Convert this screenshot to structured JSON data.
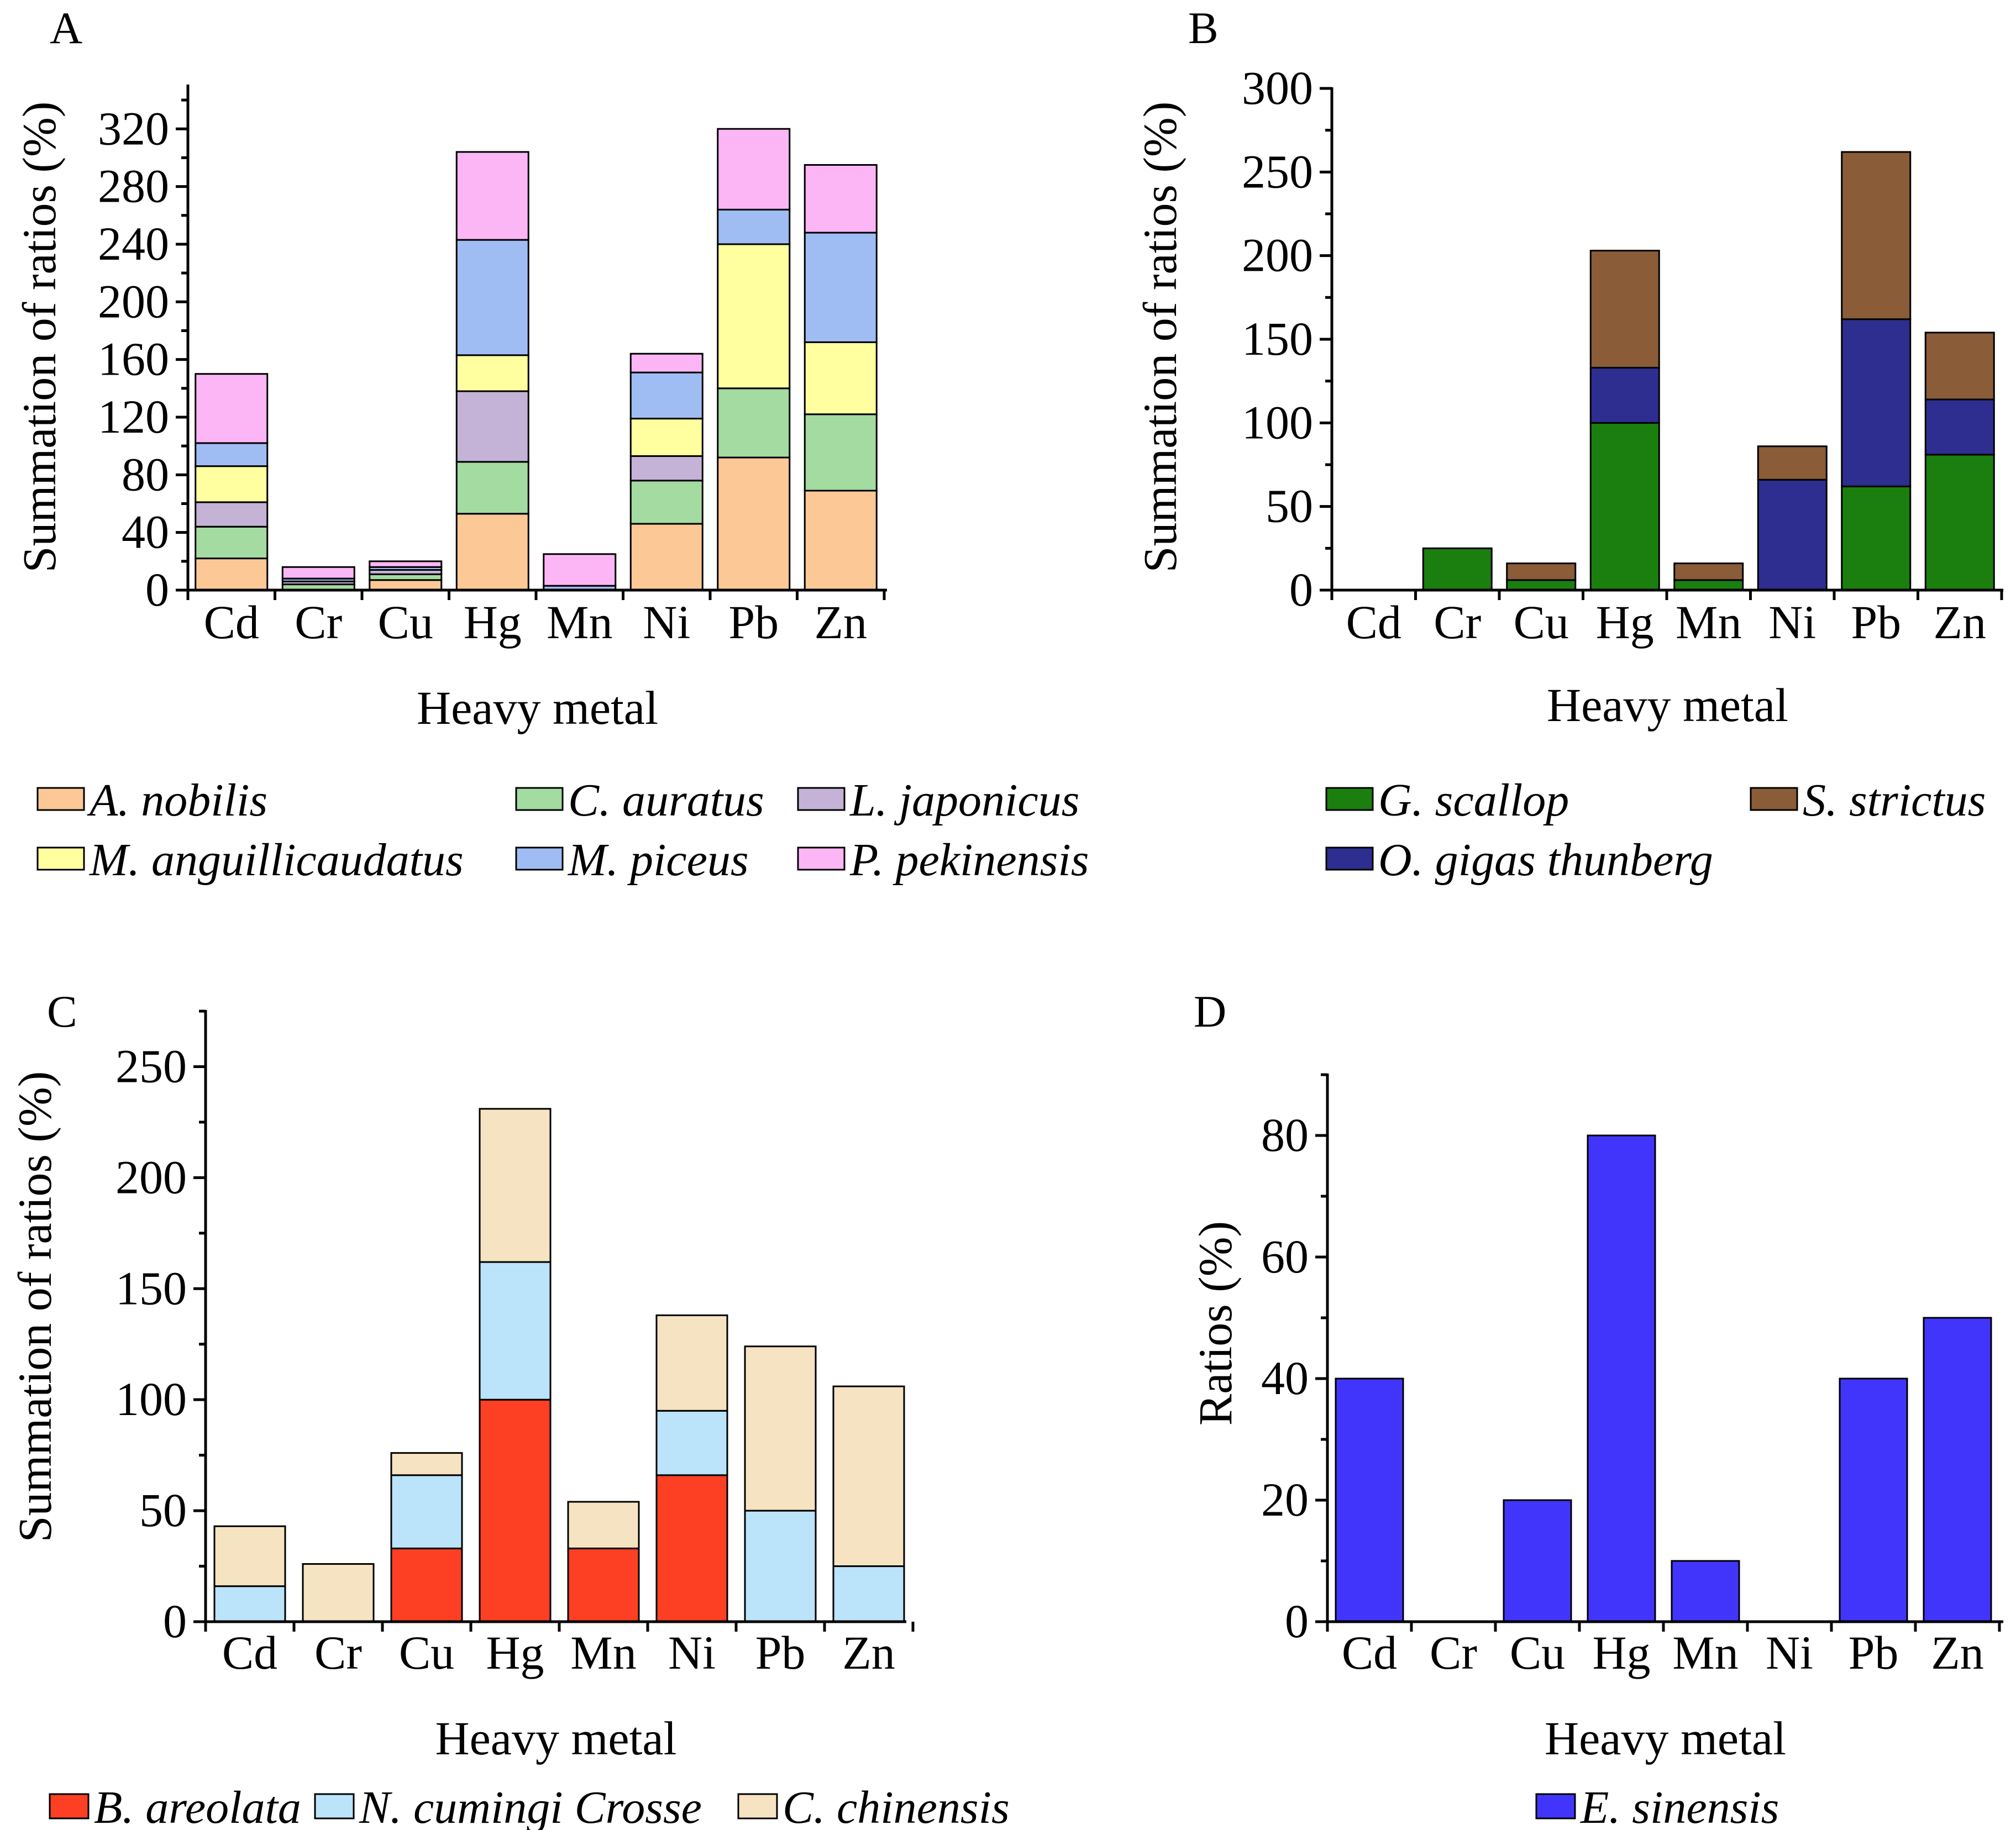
{
  "chart_data": [
    {
      "panel": "A",
      "type": "bar",
      "stacked": true,
      "categories": [
        "Cd",
        "Cr",
        "Cu",
        "Hg",
        "Mn",
        "Ni",
        "Pb",
        "Zn"
      ],
      "xlabel": "Heavy metal",
      "ylabel": "Summation of ratios (%)",
      "ylim": [
        0,
        350
      ],
      "yticks": [
        0,
        40,
        80,
        120,
        160,
        200,
        240,
        280,
        320
      ],
      "legend_position": "bottom",
      "series": [
        {
          "name": "A. nobilis",
          "color": "#fbc896",
          "values": [
            22,
            0,
            7,
            53,
            0,
            46,
            92,
            69
          ]
        },
        {
          "name": "C. auratus",
          "color": "#a3dba0",
          "values": [
            22,
            4,
            4,
            36,
            0,
            30,
            48,
            53
          ]
        },
        {
          "name": "L. japonicus",
          "color": "#c4b3d6",
          "values": [
            17,
            2,
            3,
            49,
            0,
            17,
            0,
            0
          ]
        },
        {
          "name": "M. anguillicaudatus",
          "color": "#ffff9f",
          "values": [
            25,
            0,
            0,
            25,
            0,
            26,
            100,
            50
          ]
        },
        {
          "name": "M. piceus",
          "color": "#a0bdf3",
          "values": [
            16,
            2,
            2,
            80,
            3,
            32,
            24,
            76
          ]
        },
        {
          "name": "P. pekinensis",
          "color": "#fcb6f5",
          "values": [
            48,
            8,
            4,
            61,
            22,
            13,
            56,
            47
          ]
        }
      ]
    },
    {
      "panel": "B",
      "type": "bar",
      "stacked": true,
      "categories": [
        "Cd",
        "Cr",
        "Cu",
        "Hg",
        "Mn",
        "Ni",
        "Pb",
        "Zn"
      ],
      "xlabel": "Heavy metal",
      "ylabel": "Summation of ratios (%)",
      "ylim": [
        0,
        300
      ],
      "yticks": [
        0,
        50,
        100,
        150,
        200,
        250,
        300
      ],
      "legend_position": "bottom",
      "series": [
        {
          "name": "G. scallop",
          "color": "#1a7f0e",
          "values": [
            0,
            25,
            6,
            100,
            6,
            0,
            62,
            81
          ]
        },
        {
          "name": "O. gigas thunberg",
          "color": "#2d2e8f",
          "values": [
            0,
            0,
            0,
            33,
            0,
            66,
            100,
            33
          ]
        },
        {
          "name": "S. strictus",
          "color": "#8a5c38",
          "values": [
            0,
            0,
            10,
            70,
            10,
            20,
            100,
            40
          ]
        }
      ]
    },
    {
      "panel": "C",
      "type": "bar",
      "stacked": true,
      "categories": [
        "Cd",
        "Cr",
        "Cu",
        "Hg",
        "Mn",
        "Ni",
        "Pb",
        "Zn"
      ],
      "xlabel": "Heavy metal",
      "ylabel": "Summation of ratios (%)",
      "ylim": [
        0,
        275
      ],
      "yticks": [
        0,
        50,
        100,
        150,
        200,
        250
      ],
      "legend_position": "bottom",
      "series": [
        {
          "name": "B. areolata",
          "color": "#fd3f24",
          "values": [
            0,
            0,
            33,
            100,
            33,
            66,
            0,
            0
          ]
        },
        {
          "name": "N. cumingi Crosse",
          "color": "#bbe3f9",
          "values": [
            16,
            0,
            33,
            62,
            0,
            29,
            50,
            25
          ]
        },
        {
          "name": "C. chinensis",
          "color": "#f6e3c1",
          "values": [
            27,
            26,
            10,
            69,
            21,
            43,
            74,
            81
          ]
        }
      ]
    },
    {
      "panel": "D",
      "type": "bar",
      "stacked": false,
      "categories": [
        "Cd",
        "Cr",
        "Cu",
        "Hg",
        "Mn",
        "Ni",
        "Pb",
        "Zn"
      ],
      "xlabel": "Heavy metal",
      "ylabel": "Ratios (%)",
      "ylim": [
        0,
        90
      ],
      "yticks": [
        0,
        20,
        40,
        60,
        80
      ],
      "legend_position": "bottom",
      "series": [
        {
          "name": "E. sinensis",
          "color": "#4235fb",
          "values": [
            40,
            0,
            20,
            80,
            10,
            0,
            40,
            50
          ]
        }
      ]
    }
  ]
}
